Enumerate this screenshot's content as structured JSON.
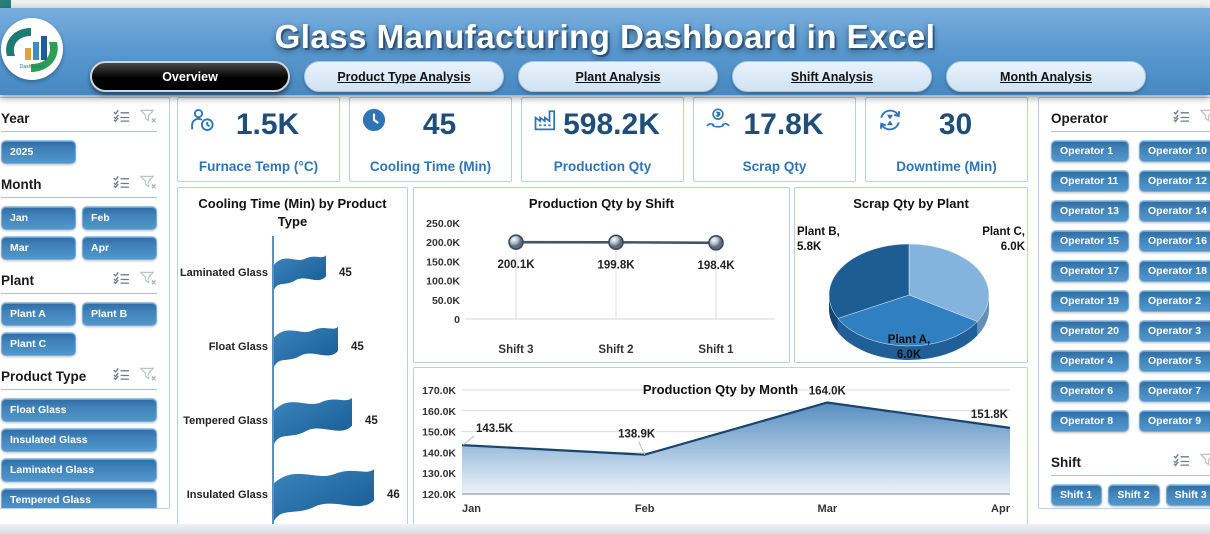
{
  "header": {
    "title": "Glass Manufacturing Dashboard in Excel",
    "tabs": [
      {
        "label": "Overview",
        "active": true
      },
      {
        "label": "Product Type Analysis",
        "active": false
      },
      {
        "label": "Plant Analysis",
        "active": false
      },
      {
        "label": "Shift Analysis",
        "active": false
      },
      {
        "label": "Month Analysis",
        "active": false
      }
    ]
  },
  "slicers": {
    "year": {
      "title": "Year",
      "items": [
        "2025"
      ]
    },
    "month": {
      "title": "Month",
      "items": [
        "Jan",
        "Feb",
        "Mar",
        "Apr"
      ]
    },
    "plant": {
      "title": "Plant",
      "items": [
        "Plant A",
        "Plant B",
        "Plant C"
      ]
    },
    "product_type": {
      "title": "Product Type",
      "items": [
        "Float Glass",
        "Insulated Glass",
        "Laminated Glass",
        "Tempered Glass"
      ]
    },
    "operator": {
      "title": "Operator",
      "items": [
        "Operator 1",
        "Operator 10",
        "Operator 11",
        "Operator 12",
        "Operator 13",
        "Operator 14",
        "Operator 15",
        "Operator 16",
        "Operator 17",
        "Operator 18",
        "Operator 19",
        "Operator 2",
        "Operator 20",
        "Operator 3",
        "Operator 4",
        "Operator 5",
        "Operator 6",
        "Operator 7",
        "Operator 8",
        "Operator 9"
      ]
    },
    "shift": {
      "title": "Shift",
      "items": [
        "Shift 1",
        "Shift 2",
        "Shift 3"
      ]
    }
  },
  "kpis": [
    {
      "icon": "furnace-temp-icon",
      "value": "1.5K",
      "label": "Furnace Temp (°C)"
    },
    {
      "icon": "cooling-time-icon",
      "value": "45",
      "label": "Cooling Time (Min)"
    },
    {
      "icon": "production-qty-icon",
      "value": "598.2K",
      "label": "Production Qty"
    },
    {
      "icon": "scrap-qty-icon",
      "value": "17.8K",
      "label": "Scrap Qty"
    },
    {
      "icon": "downtime-icon",
      "value": "30",
      "label": "Downtime (Min)"
    }
  ],
  "chart_data": [
    {
      "type": "bar",
      "title": "Cooling Time (Min) by Product Type",
      "orientation": "horizontal",
      "marker_shape": "waving-flag",
      "categories": [
        "Laminated Glass",
        "Float Glass",
        "Tempered Glass",
        "Insulated Glass"
      ],
      "values": [
        45,
        45,
        45,
        46
      ],
      "value_labels": [
        "45",
        "45",
        "45",
        "46"
      ]
    },
    {
      "type": "line",
      "title": "Production Qty by Shift",
      "categories": [
        "Shift 3",
        "Shift 2",
        "Shift 1"
      ],
      "values": [
        200100,
        199800,
        198400
      ],
      "value_labels": [
        "200.1K",
        "199.8K",
        "198.4K"
      ],
      "ylim": [
        0,
        250000
      ],
      "yticks": [
        "0",
        "50.0K",
        "100.0K",
        "150.0K",
        "200.0K",
        "250.0K"
      ]
    },
    {
      "type": "pie",
      "title": "Scrap Qty by Plant",
      "style": "3d",
      "slices": [
        {
          "name": "Plant C",
          "value": 6000,
          "label_line1": "Plant C,",
          "label_line2": "6.0K"
        },
        {
          "name": "Plant A",
          "value": 6000,
          "label_line1": "Plant A,",
          "label_line2": "6.0K"
        },
        {
          "name": "Plant B",
          "value": 5800,
          "label_line1": "Plant B,",
          "label_line2": "5.8K"
        }
      ]
    },
    {
      "type": "area",
      "title": "Production Qty by Month",
      "categories": [
        "Jan",
        "Feb",
        "Mar",
        "Apr"
      ],
      "values": [
        143500,
        138900,
        164000,
        151800
      ],
      "value_labels": [
        "143.5K",
        "138.9K",
        "164.0K",
        "151.8K"
      ],
      "ylim": [
        120000,
        170000
      ],
      "yticks": [
        "120.0K",
        "130.0K",
        "140.0K",
        "150.0K",
        "160.0K",
        "170.0K"
      ]
    }
  ],
  "colors": {
    "accent_dark": "#1f4e79",
    "accent": "#2e75b6",
    "header_blue": "#5b9ad0",
    "panel_border": "#b7d0e8",
    "pie_plant_c": "#84b4de",
    "pie_plant_a": "#2f7fc1",
    "pie_plant_b": "#1e5d94"
  }
}
